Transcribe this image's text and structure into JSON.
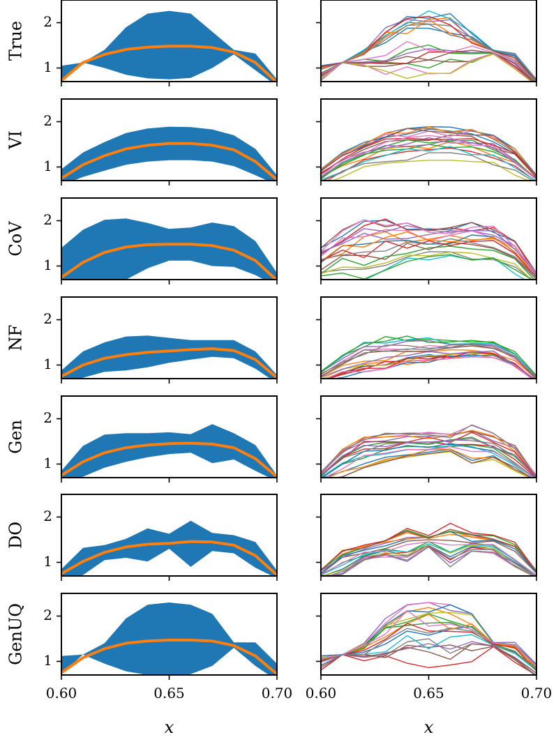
{
  "chart_data": {
    "type": "line",
    "title": "",
    "xlabel": "x",
    "xlim": [
      0.6,
      0.7
    ],
    "ylim": [
      0.7,
      2.5
    ],
    "x_ticks": [
      "0.60",
      "0.65",
      "0.70"
    ],
    "y_ticks": [
      "1",
      "2"
    ],
    "x": [
      0.6,
      0.61,
      0.62,
      0.63,
      0.64,
      0.65,
      0.66,
      0.67,
      0.68,
      0.69,
      0.7
    ],
    "band_color": "#1f77b4",
    "mean_color": "#ff7f0e",
    "sample_colors": [
      "#1f77b4",
      "#ff7f0e",
      "#2ca02c",
      "#d62728",
      "#9467bd",
      "#8c564b",
      "#e377c2",
      "#7f7f7f",
      "#bcbd22",
      "#17becf"
    ],
    "rows": [
      {
        "label": "True",
        "mean": [
          0.72,
          1.12,
          1.3,
          1.41,
          1.46,
          1.48,
          1.48,
          1.45,
          1.35,
          1.12,
          0.68
        ],
        "upper": [
          1.05,
          1.12,
          1.4,
          1.9,
          2.2,
          2.26,
          2.2,
          1.8,
          1.4,
          1.32,
          0.75
        ],
        "lower": [
          0.72,
          1.12,
          1.0,
          0.85,
          0.77,
          0.75,
          0.78,
          1.0,
          1.3,
          0.95,
          0.6
        ]
      },
      {
        "label": "VI",
        "mean": [
          0.75,
          1.05,
          1.25,
          1.4,
          1.48,
          1.52,
          1.52,
          1.48,
          1.38,
          1.12,
          0.72
        ],
        "upper": [
          0.95,
          1.32,
          1.55,
          1.75,
          1.85,
          1.89,
          1.88,
          1.83,
          1.7,
          1.4,
          0.82
        ],
        "lower": [
          0.6,
          0.78,
          0.92,
          1.05,
          1.12,
          1.15,
          1.15,
          1.12,
          1.02,
          0.82,
          0.6
        ]
      },
      {
        "label": "CoV",
        "mean": [
          0.75,
          1.08,
          1.3,
          1.42,
          1.47,
          1.48,
          1.48,
          1.45,
          1.35,
          1.12,
          0.68
        ],
        "upper": [
          1.4,
          1.8,
          2.02,
          2.05,
          1.95,
          1.82,
          1.85,
          1.96,
          1.88,
          1.55,
          0.85
        ],
        "lower": [
          0.6,
          0.58,
          0.6,
          0.7,
          0.95,
          1.12,
          1.12,
          1.0,
          0.98,
          0.8,
          0.55
        ]
      },
      {
        "label": "NF",
        "mean": [
          0.75,
          1.0,
          1.15,
          1.23,
          1.28,
          1.31,
          1.34,
          1.36,
          1.32,
          1.12,
          0.72
        ],
        "upper": [
          0.88,
          1.3,
          1.5,
          1.63,
          1.65,
          1.6,
          1.55,
          1.55,
          1.55,
          1.3,
          0.78
        ],
        "lower": [
          0.62,
          0.72,
          0.85,
          0.88,
          0.95,
          1.05,
          1.12,
          1.18,
          1.15,
          0.92,
          0.6
        ]
      },
      {
        "label": "Gen",
        "mean": [
          0.75,
          1.05,
          1.25,
          1.36,
          1.42,
          1.45,
          1.46,
          1.44,
          1.36,
          1.12,
          0.72
        ],
        "upper": [
          0.85,
          1.4,
          1.65,
          1.68,
          1.68,
          1.7,
          1.66,
          1.88,
          1.68,
          1.42,
          0.75
        ],
        "lower": [
          0.62,
          0.72,
          0.92,
          1.05,
          1.15,
          1.22,
          1.25,
          1.02,
          1.1,
          0.85,
          0.62
        ]
      },
      {
        "label": "DO",
        "mean": [
          0.75,
          1.02,
          1.22,
          1.34,
          1.4,
          1.42,
          1.46,
          1.45,
          1.38,
          1.15,
          0.72
        ],
        "upper": [
          0.85,
          1.32,
          1.38,
          1.52,
          1.75,
          1.63,
          1.92,
          1.65,
          1.6,
          1.45,
          0.82
        ],
        "lower": [
          0.65,
          0.72,
          1.05,
          1.1,
          1.02,
          1.3,
          0.9,
          1.25,
          1.2,
          0.88,
          0.65
        ]
      },
      {
        "label": "GenUQ",
        "mean": [
          0.75,
          1.08,
          1.28,
          1.4,
          1.45,
          1.47,
          1.47,
          1.45,
          1.35,
          1.12,
          0.72
        ],
        "upper": [
          1.12,
          1.15,
          1.4,
          1.95,
          2.25,
          2.3,
          2.25,
          2.05,
          1.42,
          1.42,
          0.95
        ],
        "lower": [
          0.72,
          1.15,
          0.95,
          0.78,
          0.7,
          0.68,
          0.72,
          0.9,
          1.3,
          0.9,
          0.58
        ]
      }
    ]
  }
}
